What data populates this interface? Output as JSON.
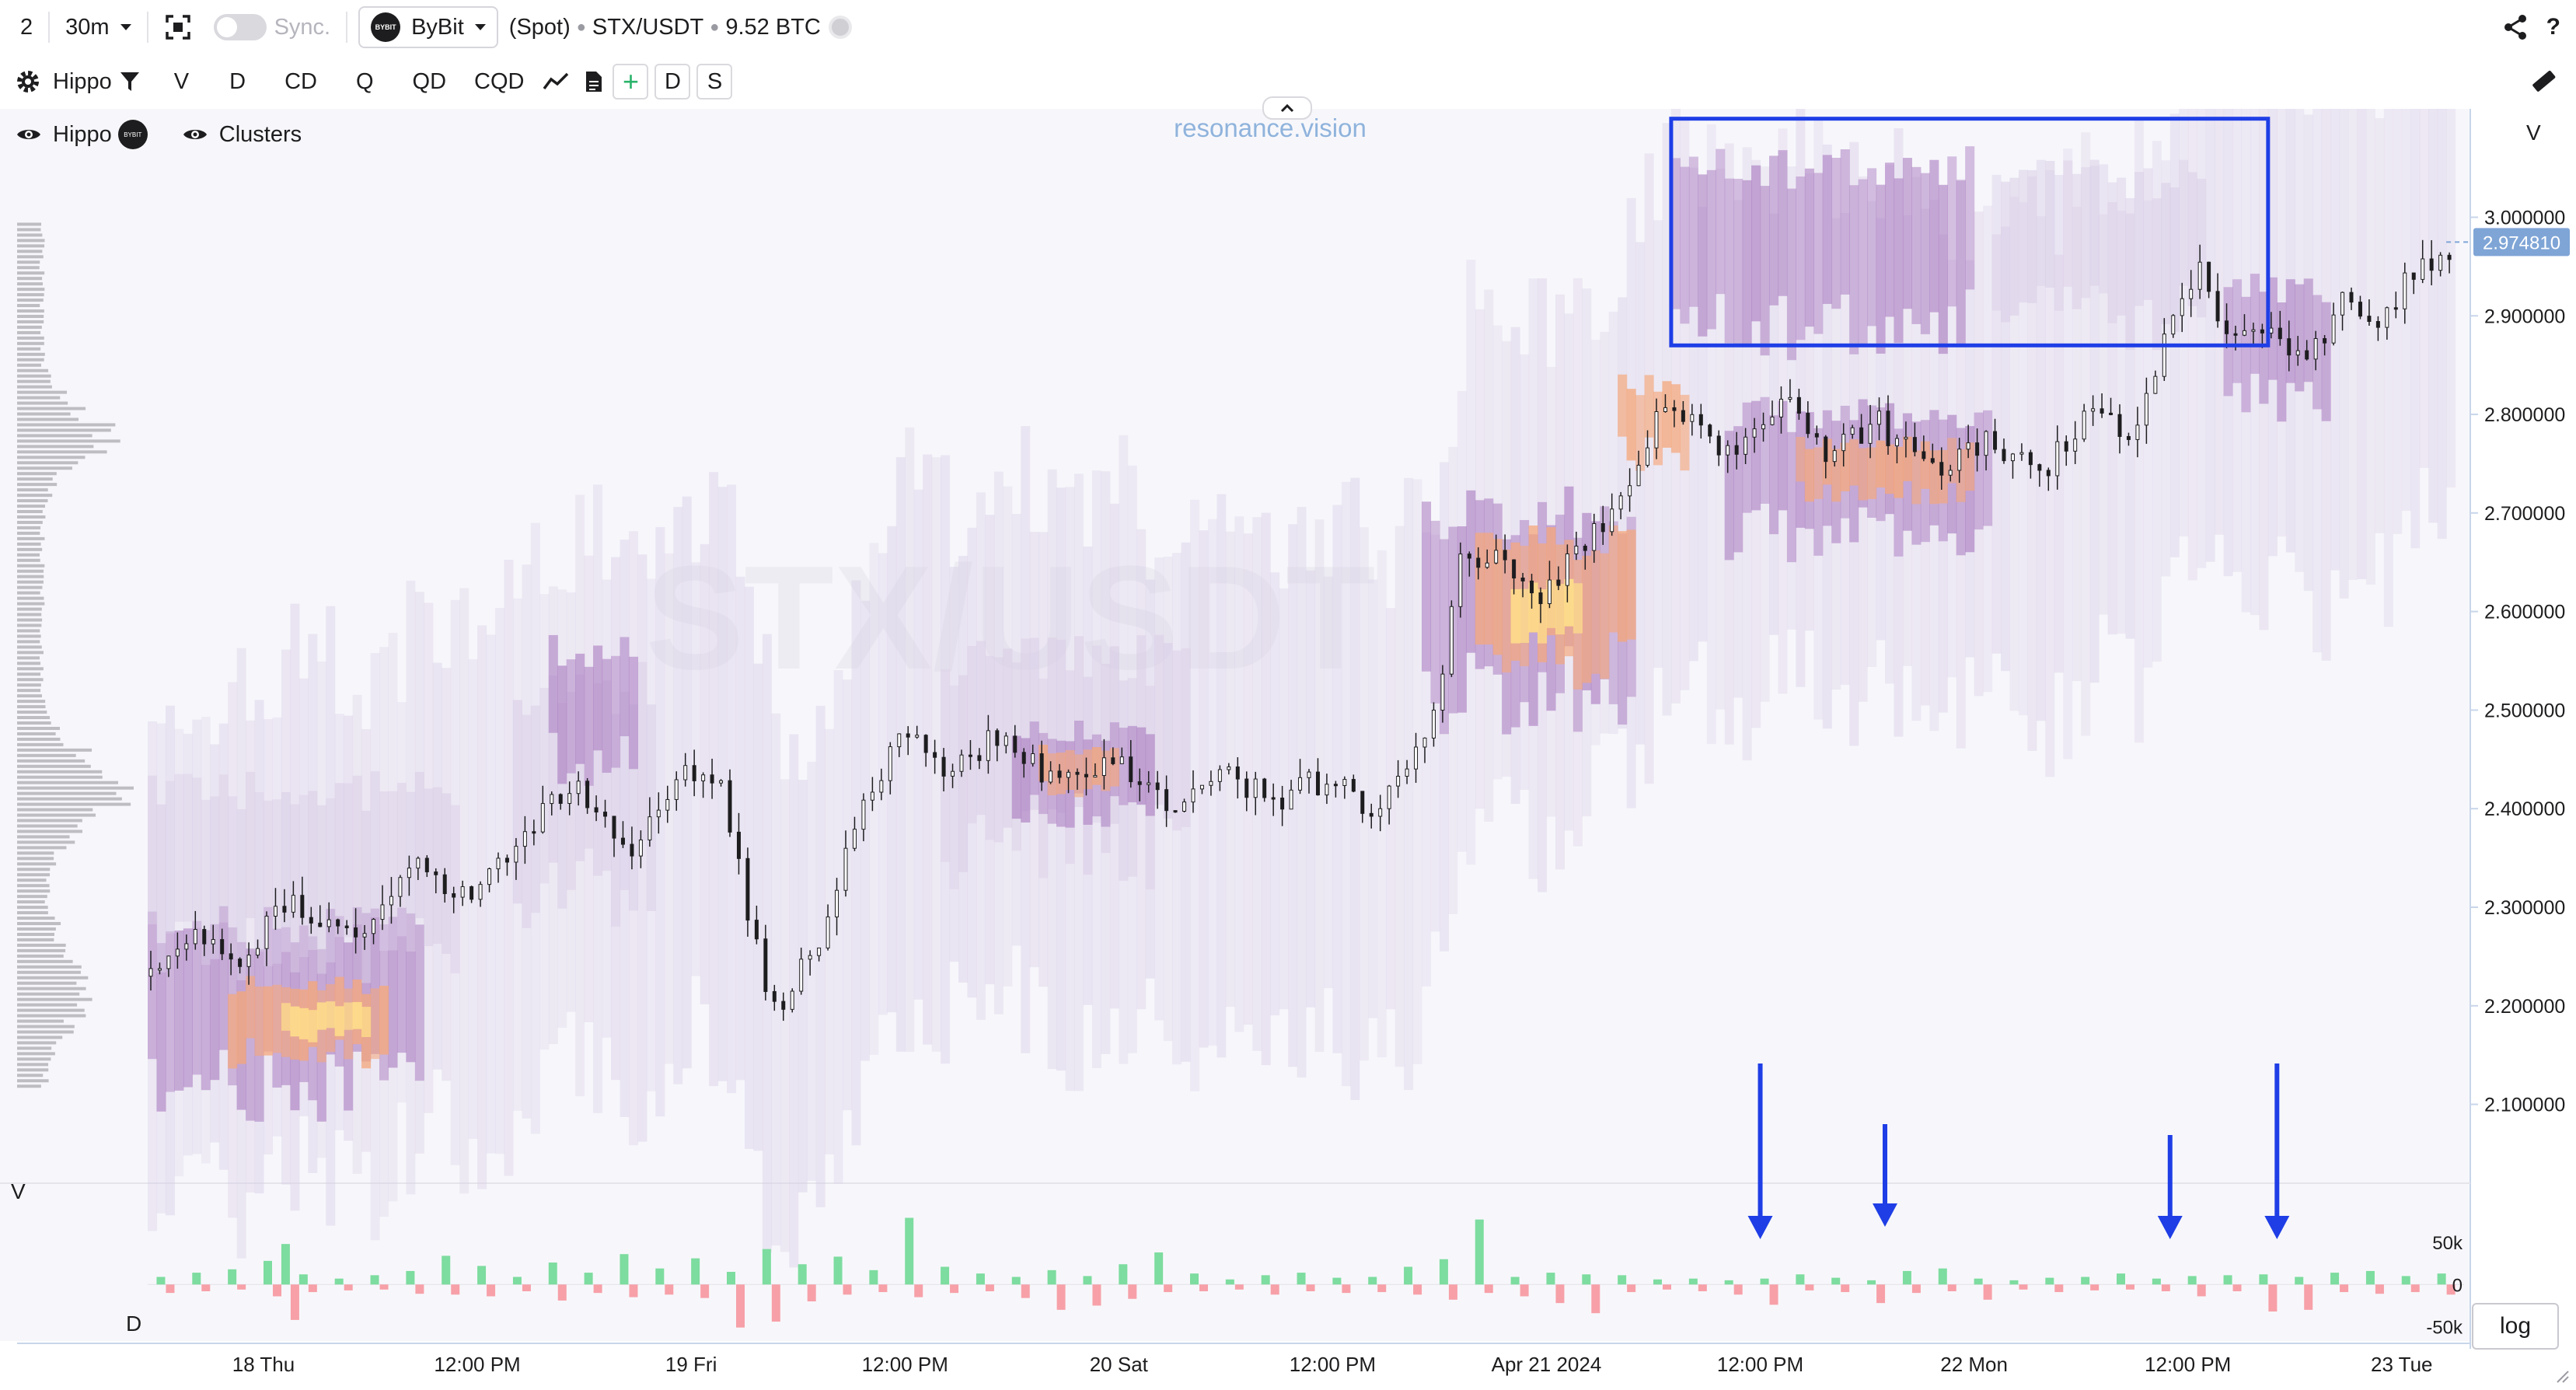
{
  "topbar": {
    "layout_count": "2",
    "interval": "30m",
    "sync_label": "Sync.",
    "exchange": "ByBit",
    "exchange_logo_text": "BYBIT",
    "market": "(Spot)",
    "symbol": "STX/USDT",
    "volume": "9.52 BTC",
    "help": "?",
    "icons": [
      "layout-icon",
      "screenshot-icon",
      "share-icon",
      "help-icon"
    ]
  },
  "toolbar": {
    "indicator": "Hippo",
    "tabs": [
      "V",
      "D",
      "CD",
      "Q",
      "QD",
      "CQD"
    ],
    "plus": "+",
    "btn_d": "D",
    "btn_s": "S",
    "icons": [
      "gear-icon",
      "filter-icon",
      "line-chart-icon",
      "document-icon",
      "ruler-icon"
    ]
  },
  "legend": {
    "hippo_label": "Hippo",
    "hippo_badge": "BYBIT",
    "clusters_label": "Clusters"
  },
  "watermark": {
    "brand": "resonance.vision",
    "symbol": "STX/USDT"
  },
  "panels": {
    "price_axis_label": "V",
    "volume_label": "V",
    "delta_label": "D",
    "log_button": "log"
  },
  "colors": {
    "background": "#f7f7fb",
    "candle": "#1d1d1f",
    "cluster_low": "#d9cde6",
    "cluster_mid": "#a97bc0",
    "cluster_high": "#f5a77a",
    "cluster_peak": "#ffe08a",
    "buy_volume": "#7ddc9f",
    "sell_volume": "#f7a0a8",
    "annotation": "#1f3ee6",
    "price_badge": "#7fa5d6"
  },
  "chart_data": {
    "type": "candlestick",
    "title": "",
    "xlabel": "",
    "ylabel": "",
    "ylim": [
      2.02,
      3.11
    ],
    "grid": false,
    "y_ticks": [
      "3.000000",
      "2.900000",
      "2.800000",
      "2.700000",
      "2.600000",
      "2.500000",
      "2.400000",
      "2.300000",
      "2.200000",
      "2.100000"
    ],
    "y_tick_values": [
      3.0,
      2.9,
      2.8,
      2.7,
      2.6,
      2.5,
      2.4,
      2.3,
      2.2,
      2.1
    ],
    "last_price": "2.974810",
    "last_price_value": 2.97481,
    "x_ticks": [
      "18 Thu",
      "12:00 PM",
      "19 Fri",
      "12:00 PM",
      "20 Sat",
      "12:00 PM",
      "Apr 21 2024",
      "12:00 PM",
      "22 Mon",
      "12:00 PM",
      "23 Tue"
    ],
    "x_tick_hours": [
      24,
      36,
      48,
      60,
      72,
      84,
      96,
      108,
      120,
      132,
      144
    ],
    "x_range_hours": [
      17.5,
      147.5
    ],
    "bar_interval": "30m",
    "price_path_hours": [
      17.5,
      20,
      23,
      26,
      30,
      33,
      36,
      39,
      42,
      45,
      48,
      50,
      51.5,
      53,
      56,
      58,
      60,
      63,
      66,
      69,
      72,
      75,
      78,
      81,
      84,
      87,
      89,
      90.5,
      91.5,
      93,
      96,
      99,
      101,
      103,
      105,
      107,
      108.5,
      110,
      112,
      115,
      118,
      121,
      124,
      127,
      129.5,
      131,
      133,
      135,
      137,
      139,
      141,
      143,
      145,
      147
    ],
    "price_path_values": [
      2.23,
      2.27,
      2.25,
      2.31,
      2.26,
      2.35,
      2.3,
      2.38,
      2.42,
      2.36,
      2.44,
      2.42,
      2.3,
      2.19,
      2.28,
      2.41,
      2.47,
      2.44,
      2.48,
      2.42,
      2.46,
      2.4,
      2.44,
      2.41,
      2.43,
      2.4,
      2.45,
      2.53,
      2.65,
      2.66,
      2.62,
      2.68,
      2.72,
      2.82,
      2.78,
      2.76,
      2.79,
      2.83,
      2.76,
      2.79,
      2.74,
      2.77,
      2.74,
      2.8,
      2.78,
      2.88,
      2.94,
      2.87,
      2.9,
      2.85,
      2.92,
      2.88,
      2.95,
      2.97
    ],
    "clusters": [
      {
        "x0": 17.5,
        "x1": 33,
        "y0": 2.12,
        "y1": 2.28,
        "level": "mid"
      },
      {
        "x0": 22,
        "x1": 31,
        "y0": 2.15,
        "y1": 2.22,
        "level": "high"
      },
      {
        "x0": 25,
        "x1": 30,
        "y0": 2.17,
        "y1": 2.2,
        "level": "peak"
      },
      {
        "x0": 17.5,
        "x1": 35,
        "y0": 2.26,
        "y1": 2.42,
        "level": "low"
      },
      {
        "x0": 38,
        "x1": 46,
        "y0": 2.32,
        "y1": 2.52,
        "level": "low"
      },
      {
        "x0": 40,
        "x1": 45,
        "y0": 2.45,
        "y1": 2.56,
        "level": "mid"
      },
      {
        "x0": 62,
        "x1": 76,
        "y0": 2.36,
        "y1": 2.55,
        "level": "low"
      },
      {
        "x0": 66,
        "x1": 74,
        "y0": 2.4,
        "y1": 2.48,
        "level": "mid"
      },
      {
        "x0": 67.5,
        "x1": 72,
        "y0": 2.42,
        "y1": 2.46,
        "level": "high"
      },
      {
        "x0": 89,
        "x1": 101,
        "y0": 2.52,
        "y1": 2.7,
        "level": "mid"
      },
      {
        "x0": 92,
        "x1": 101,
        "y0": 2.55,
        "y1": 2.67,
        "level": "high"
      },
      {
        "x0": 94,
        "x1": 98,
        "y0": 2.58,
        "y1": 2.63,
        "level": "peak"
      },
      {
        "x0": 100,
        "x1": 104,
        "y0": 2.76,
        "y1": 2.83,
        "level": "high"
      },
      {
        "x0": 103,
        "x1": 120,
        "y0": 2.89,
        "y1": 3.05,
        "level": "mid"
      },
      {
        "x0": 106,
        "x1": 121,
        "y0": 2.68,
        "y1": 2.8,
        "level": "mid"
      },
      {
        "x0": 110,
        "x1": 120,
        "y0": 2.72,
        "y1": 2.77,
        "level": "high"
      },
      {
        "x0": 121,
        "x1": 133,
        "y0": 2.9,
        "y1": 3.04,
        "level": "low"
      },
      {
        "x0": 134,
        "x1": 140,
        "y0": 2.82,
        "y1": 2.93,
        "level": "mid"
      }
    ],
    "highlight_box": {
      "x0": 103,
      "x1": 136.5,
      "y0": 2.87,
      "y1": 3.1
    },
    "arrows_hours": [
      108,
      115,
      131,
      137
    ],
    "volume_axis": {
      "ticks": [
        "50k",
        "0",
        "-50k"
      ],
      "tick_values": [
        50000,
        0,
        -50000
      ],
      "ylim": [
        -55000,
        85000
      ]
    },
    "volume_hours": [
      18,
      20,
      22,
      24,
      25,
      26,
      28,
      30,
      32,
      34,
      36,
      38,
      40,
      42,
      44,
      46,
      48,
      50,
      52,
      54,
      56,
      58,
      60,
      62,
      64,
      66,
      68,
      70,
      72,
      74,
      76,
      78,
      80,
      82,
      84,
      86,
      88,
      90,
      92,
      94,
      96,
      98,
      100,
      102,
      104,
      106,
      108,
      110,
      112,
      114,
      116,
      118,
      120,
      122,
      124,
      126,
      128,
      130,
      132,
      134,
      136,
      138,
      140,
      142,
      144,
      146
    ],
    "buy_volume": [
      9000,
      14000,
      18000,
      28000,
      48000,
      12000,
      7000,
      11000,
      16000,
      34000,
      22000,
      9000,
      26000,
      14000,
      36000,
      19000,
      31000,
      15000,
      42000,
      24000,
      33000,
      17000,
      79000,
      21000,
      13000,
      9000,
      17000,
      10000,
      24000,
      38000,
      13000,
      6000,
      11000,
      14000,
      8000,
      9000,
      21000,
      30000,
      77000,
      9000,
      14000,
      12000,
      11000,
      6000,
      7000,
      5000,
      7000,
      12000,
      8000,
      5000,
      16000,
      19000,
      7000,
      5000,
      8000,
      9000,
      13000,
      7000,
      10000,
      11000,
      12000,
      9000,
      14000,
      16000,
      10000,
      13000
    ],
    "sell_volume": [
      -10000,
      -8000,
      -6000,
      -14000,
      -42000,
      -9000,
      -7000,
      -6000,
      -11000,
      -12000,
      -14000,
      -8000,
      -19000,
      -10000,
      -15000,
      -12000,
      -16000,
      -51000,
      -44000,
      -20000,
      -12000,
      -9000,
      -15000,
      -10000,
      -8000,
      -16000,
      -30000,
      -25000,
      -17000,
      -9000,
      -8000,
      -6000,
      -12000,
      -8000,
      -10000,
      -9000,
      -12000,
      -18000,
      -10000,
      -14000,
      -22000,
      -34000,
      -9000,
      -6000,
      -8000,
      -12000,
      -24000,
      -7000,
      -9000,
      -22000,
      -10000,
      -8000,
      -18000,
      -6000,
      -9000,
      -7000,
      -6000,
      -8000,
      -14000,
      -8000,
      -32000,
      -30000,
      -9000,
      -11000,
      -9000,
      -12000
    ]
  }
}
